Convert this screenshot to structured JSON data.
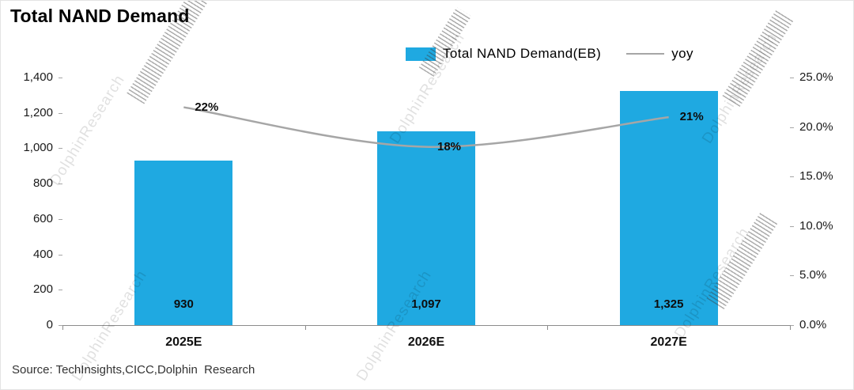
{
  "title": "Total NAND Demand",
  "legend": {
    "bar_label": "Total NAND Demand(EB)",
    "line_label": "yoy"
  },
  "source": "Source: TechInsights,CICC,Dolphin  Research",
  "watermark": "DolphinResearch",
  "colors": {
    "bar": "#1FA9E1",
    "line": "#A6A6A6"
  },
  "chart_data": {
    "type": "bar",
    "title": "Total NAND Demand",
    "categories": [
      "2025E",
      "2026E",
      "2027E"
    ],
    "series": [
      {
        "name": "Total NAND Demand(EB)",
        "type": "bar",
        "axis": "left",
        "values": [
          930,
          1097,
          1325
        ],
        "labels": [
          "930",
          "1,097",
          "1,325"
        ]
      },
      {
        "name": "yoy",
        "type": "line",
        "axis": "right",
        "values": [
          22,
          18,
          21
        ],
        "labels": [
          "22%",
          "18%",
          "21%"
        ]
      }
    ],
    "left_axis": {
      "min": 0,
      "max": 1400,
      "step": 200,
      "ticks": [
        "0",
        "200",
        "400",
        "600",
        "800",
        "1,000",
        "1,200",
        "1,400"
      ]
    },
    "right_axis": {
      "min": 0,
      "max": 25,
      "step": 5,
      "ticks": [
        "0.0%",
        "5.0%",
        "10.0%",
        "15.0%",
        "20.0%",
        "25.0%"
      ]
    },
    "legend_position": "top",
    "grid": false
  }
}
